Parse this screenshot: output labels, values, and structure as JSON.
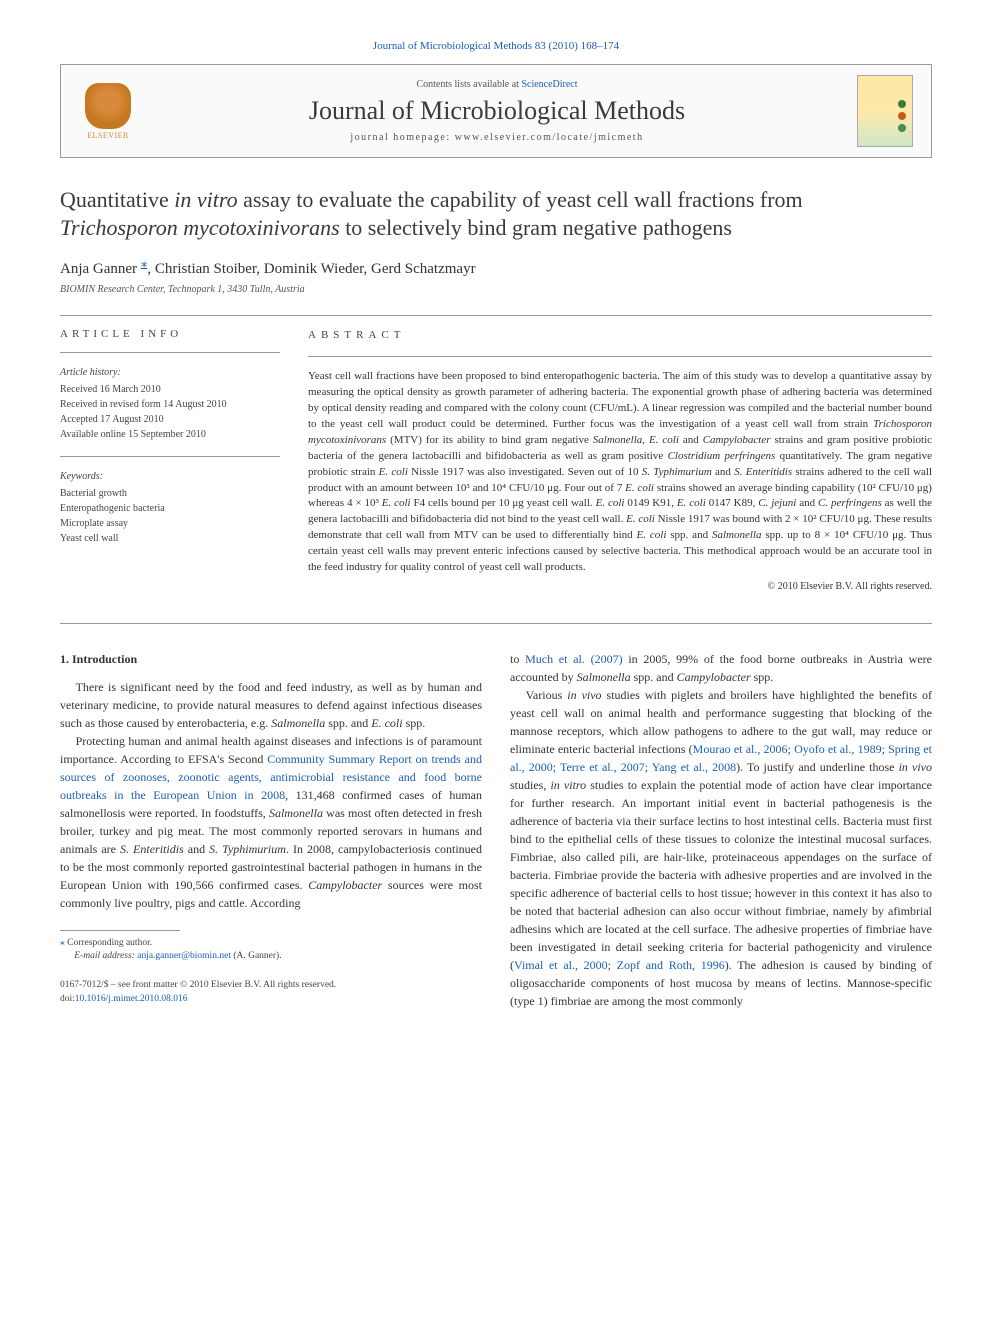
{
  "top_link": "Journal of Microbiological Methods 83 (2010) 168–174",
  "header": {
    "contents_pre": "Contents lists available at ",
    "contents_link": "ScienceDirect",
    "journal": "Journal of Microbiological Methods",
    "homepage_pre": "journal homepage: ",
    "homepage": "www.elsevier.com/locate/jmicmeth",
    "elsevier": "ELSEVIER"
  },
  "title": {
    "line1_pre": "Quantitative ",
    "line1_it": "in vitro",
    "line1_post": " assay to evaluate the capability of yeast cell wall fractions from ",
    "line2_it": "Trichosporon mycotoxinivorans",
    "line2_post": " to selectively bind gram negative pathogens"
  },
  "authors": "Anja Ganner ⁎, Christian Stoiber, Dominik Wieder, Gerd Schatzmayr",
  "affiliation": "BIOMIN Research Center, Technopark 1, 3430 Tulln, Austria",
  "info": {
    "heading": "article info",
    "history_label": "Article history:",
    "history": [
      "Received 16 March 2010",
      "Received in revised form 14 August 2010",
      "Accepted 17 August 2010",
      "Available online 15 September 2010"
    ],
    "keywords_label": "Keywords:",
    "keywords": [
      "Bacterial growth",
      "Enteropathogenic bacteria",
      "Microplate assay",
      "Yeast cell wall"
    ]
  },
  "abstract": {
    "heading": "abstract",
    "text_parts": [
      {
        "t": "Yeast cell wall fractions have been proposed to bind enteropathogenic bacteria. The aim of this study was to develop a quantitative assay by measuring the optical density as growth parameter of adhering bacteria. The exponential growth phase of adhering bacteria was determined by optical density reading and compared with the colony count (CFU/mL). A linear regression was compiled and the bacterial number bound to the yeast cell wall product could be determined. Further focus was the investigation of a yeast cell wall from strain "
      },
      {
        "t": "Trichosporon mycotoxinivorans",
        "i": true
      },
      {
        "t": " (MTV) for its ability to bind gram negative "
      },
      {
        "t": "Salmonella",
        "i": true
      },
      {
        "t": ", "
      },
      {
        "t": "E. coli",
        "i": true
      },
      {
        "t": " and "
      },
      {
        "t": "Campylobacter",
        "i": true
      },
      {
        "t": " strains and gram positive probiotic bacteria of the genera lactobacilli and bifidobacteria as well as gram positive "
      },
      {
        "t": "Clostridium perfringens",
        "i": true
      },
      {
        "t": " quantitatively. The gram negative probiotic strain "
      },
      {
        "t": "E. coli",
        "i": true
      },
      {
        "t": " Nissle 1917 was also investigated. Seven out of 10 "
      },
      {
        "t": "S. Typhimurium",
        "i": true
      },
      {
        "t": " and "
      },
      {
        "t": "S. Enteritidis",
        "i": true
      },
      {
        "t": " strains adhered to the cell wall product with an amount between 10³ and 10⁴ CFU/10 μg. Four out of 7 "
      },
      {
        "t": "E. coli",
        "i": true
      },
      {
        "t": " strains showed an average binding capability (10² CFU/10 μg) whereas 4 × 10³ "
      },
      {
        "t": "E. coli",
        "i": true
      },
      {
        "t": " F4 cells bound per 10 μg yeast cell wall. "
      },
      {
        "t": "E. coli",
        "i": true
      },
      {
        "t": " 0149 K91, "
      },
      {
        "t": "E. coli",
        "i": true
      },
      {
        "t": " 0147 K89, "
      },
      {
        "t": "C. jejuni",
        "i": true
      },
      {
        "t": " and "
      },
      {
        "t": "C. perfringens",
        "i": true
      },
      {
        "t": " as well the genera lactobacilli and bifidobacteria did not bind to the yeast cell wall. "
      },
      {
        "t": "E. coli",
        "i": true
      },
      {
        "t": " Nissle 1917 was bound with 2 × 10² CFU/10 μg. These results demonstrate that cell wall from MTV can be used to differentially bind "
      },
      {
        "t": "E. coli",
        "i": true
      },
      {
        "t": " spp. and "
      },
      {
        "t": "Salmonella",
        "i": true
      },
      {
        "t": " spp. up to 8 × 10⁴ CFU/10 μg. Thus certain yeast cell walls may prevent enteric infections caused by selective bacteria. This methodical approach would be an accurate tool in the feed industry for quality control of yeast cell wall products."
      }
    ],
    "copyright": "© 2010 Elsevier B.V. All rights reserved."
  },
  "body": {
    "section_heading": "1. Introduction",
    "p1": [
      {
        "t": "There is significant need by the food and feed industry, as well as by human and veterinary medicine, to provide natural measures to defend against infectious diseases such as those caused by enterobacteria, e.g. "
      },
      {
        "t": "Salmonella",
        "i": true
      },
      {
        "t": " spp. and "
      },
      {
        "t": "E. coli",
        "i": true
      },
      {
        "t": " spp."
      }
    ],
    "p2": [
      {
        "t": "Protecting human and animal health against diseases and infections is of paramount importance. According to EFSA's Second "
      },
      {
        "t": "Community Summary Report on trends and sources of zoonoses, zoonotic agents, antimicrobial resistance and food borne outbreaks in the European Union in 2008",
        "a": true
      },
      {
        "t": ", 131,468 confirmed cases of human salmonellosis were reported. In foodstuffs, "
      },
      {
        "t": "Salmonella",
        "i": true
      },
      {
        "t": " was most often detected in fresh broiler, turkey and pig meat. The most commonly reported serovars in humans and animals are "
      },
      {
        "t": "S. Enteritidis",
        "i": true
      },
      {
        "t": " and "
      },
      {
        "t": "S. Typhimurium",
        "i": true
      },
      {
        "t": ". In 2008, campylobacteriosis continued to be the most commonly reported gastrointestinal bacterial pathogen in humans in the European Union with 190,566 confirmed cases. "
      },
      {
        "t": "Campylobacter",
        "i": true
      },
      {
        "t": " sources were most commonly live poultry, pigs and cattle. According "
      }
    ],
    "p2b": [
      {
        "t": "to "
      },
      {
        "t": "Much et al. (2007)",
        "a": true
      },
      {
        "t": " in 2005, 99% of the food borne outbreaks in Austria were accounted by "
      },
      {
        "t": "Salmonella",
        "i": true
      },
      {
        "t": " spp. and "
      },
      {
        "t": "Campylobacter",
        "i": true
      },
      {
        "t": " spp."
      }
    ],
    "p3": [
      {
        "t": "Various "
      },
      {
        "t": "in vivo",
        "i": true
      },
      {
        "t": " studies with piglets and broilers have highlighted the benefits of yeast cell wall on animal health and performance suggesting that blocking of the mannose receptors, which allow pathogens to adhere to the gut wall, may reduce or eliminate enteric bacterial infections ("
      },
      {
        "t": "Mourao et al., 2006; Oyofo et al., 1989; Spring et al., 2000; Terre et al., 2007; Yang et al., 2008",
        "a": true
      },
      {
        "t": "). To justify and underline those "
      },
      {
        "t": "in vivo",
        "i": true
      },
      {
        "t": " studies, "
      },
      {
        "t": "in vitro",
        "i": true
      },
      {
        "t": " studies to explain the potential mode of action have clear importance for further research. An important initial event in bacterial pathogenesis is the adherence of bacteria via their surface lectins to host intestinal cells. Bacteria must first bind to the epithelial cells of these tissues to colonize the intestinal mucosal surfaces. Fimbriae, also called pili, are hair-like, proteinaceous appendages on the surface of bacteria. Fimbriae provide the bacteria with adhesive properties and are involved in the specific adherence of bacterial cells to host tissue; however in this context it has also to be noted that bacterial adhesion can also occur without fimbriae, namely by afimbrial adhesins which are located at the cell surface. The adhesive properties of fimbriae have been investigated in detail seeking criteria for bacterial pathogenicity and virulence ("
      },
      {
        "t": "Vimal et al., 2000; Zopf and Roth, 1996",
        "a": true
      },
      {
        "t": "). The adhesion is caused by binding of oligosaccharide components of host mucosa by means of lectins. Mannose-specific (type 1) fimbriae are among the most commonly"
      }
    ]
  },
  "footnotes": {
    "corr": "Corresponding author.",
    "email_label": "E-mail address: ",
    "email": "anja.ganner@biomin.net",
    "email_suffix": " (A. Ganner)."
  },
  "bottom": {
    "line1": "0167-7012/$ – see front matter © 2010 Elsevier B.V. All rights reserved.",
    "doi_pre": "doi:",
    "doi": "10.1016/j.mimet.2010.08.016"
  }
}
